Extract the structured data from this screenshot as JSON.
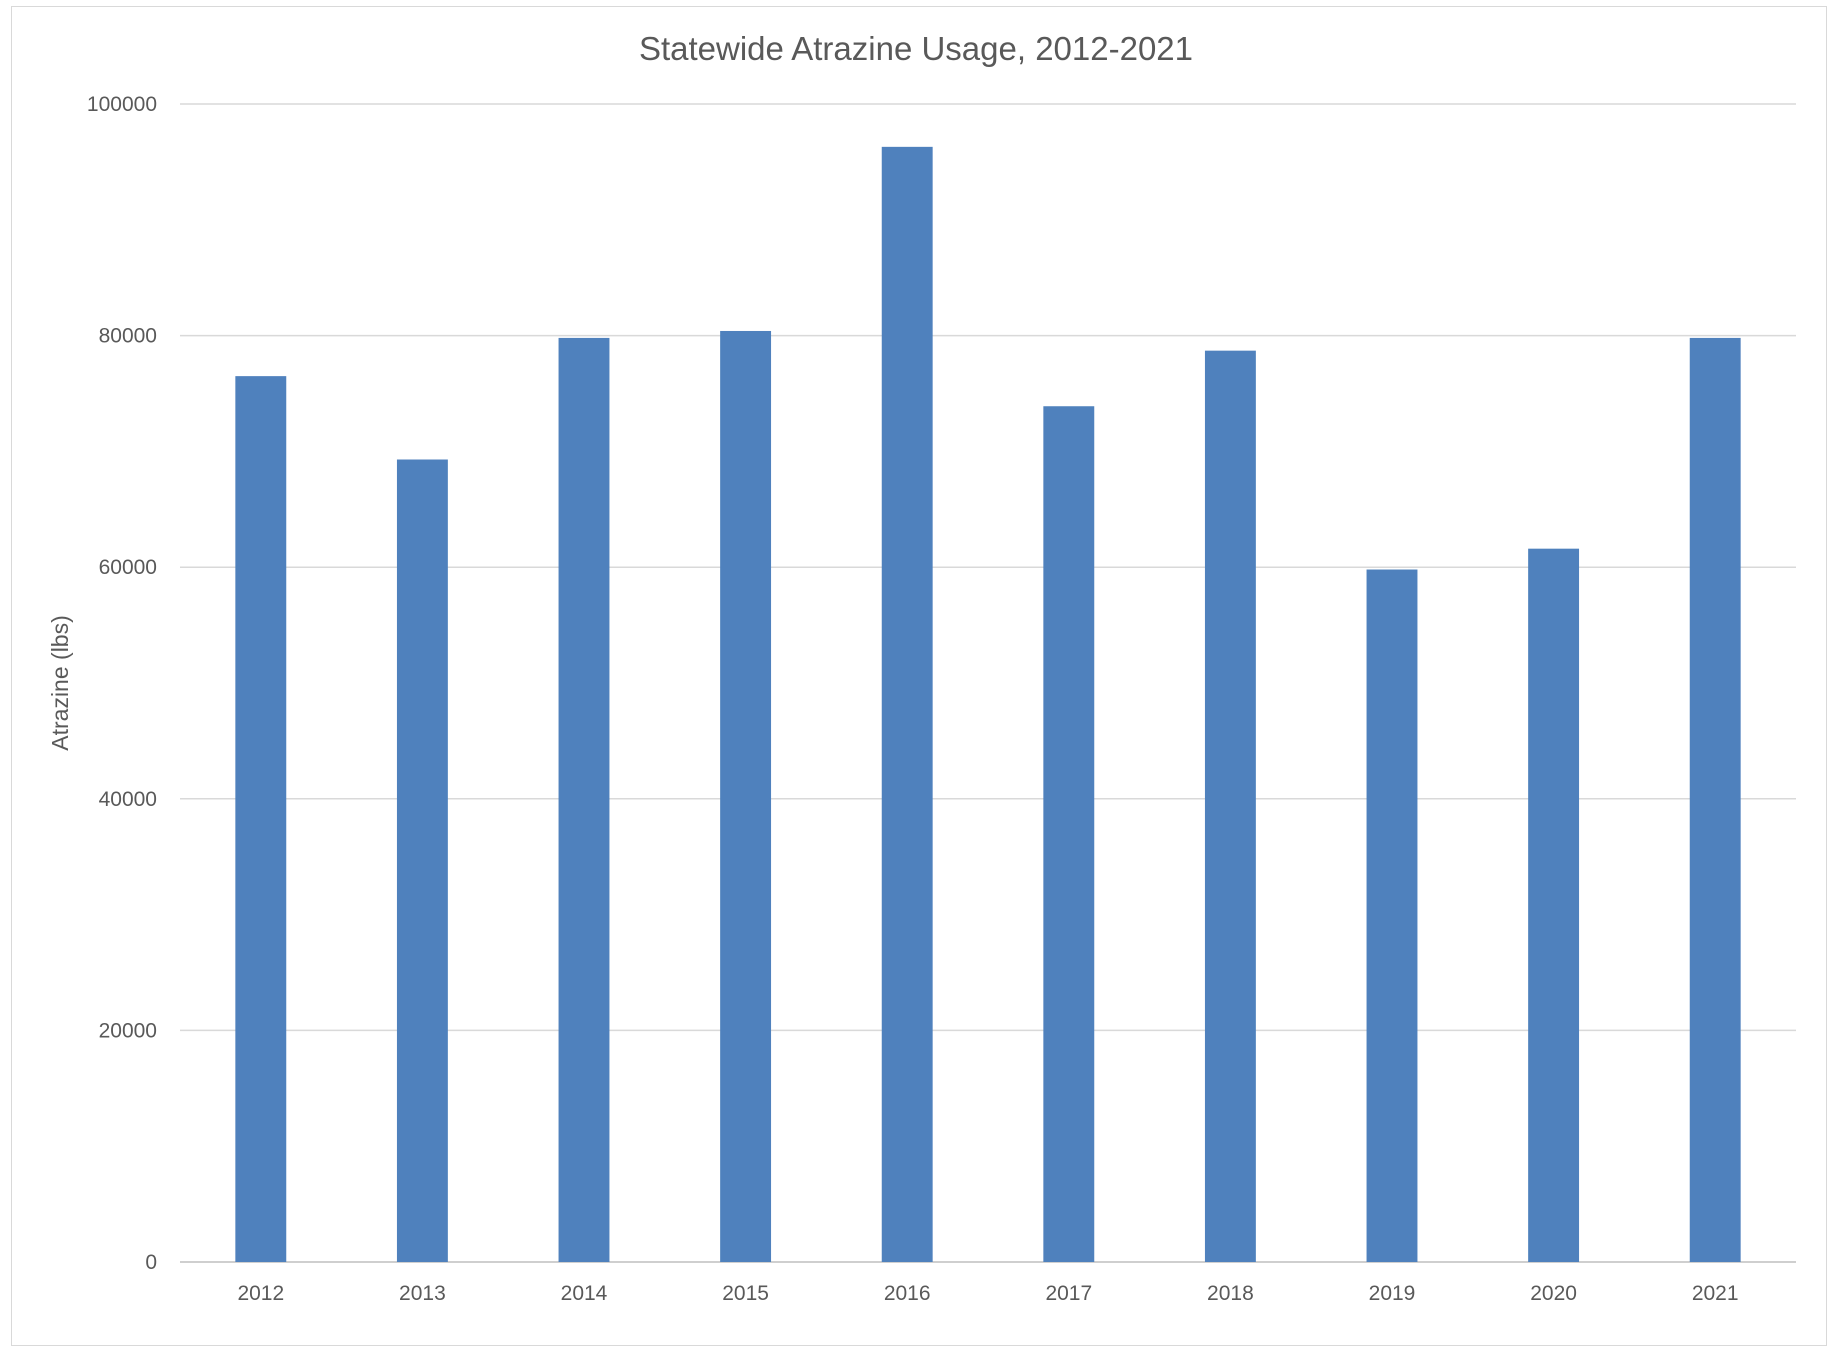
{
  "chart_data": {
    "type": "bar",
    "title": "Statewide Atrazine Usage, 2012-2021",
    "xlabel": "",
    "ylabel": "Atrazine (lbs)",
    "categories": [
      "2012",
      "2013",
      "2014",
      "2015",
      "2016",
      "2017",
      "2018",
      "2019",
      "2020",
      "2021"
    ],
    "values": [
      76500,
      69300,
      79800,
      80400,
      96300,
      73900,
      78700,
      59800,
      61600,
      79800
    ],
    "ylim": [
      0,
      100000
    ],
    "yticks": [
      0,
      20000,
      40000,
      60000,
      80000,
      100000
    ],
    "grid": true,
    "legend": "none",
    "bar_color": "#4F81BD"
  }
}
